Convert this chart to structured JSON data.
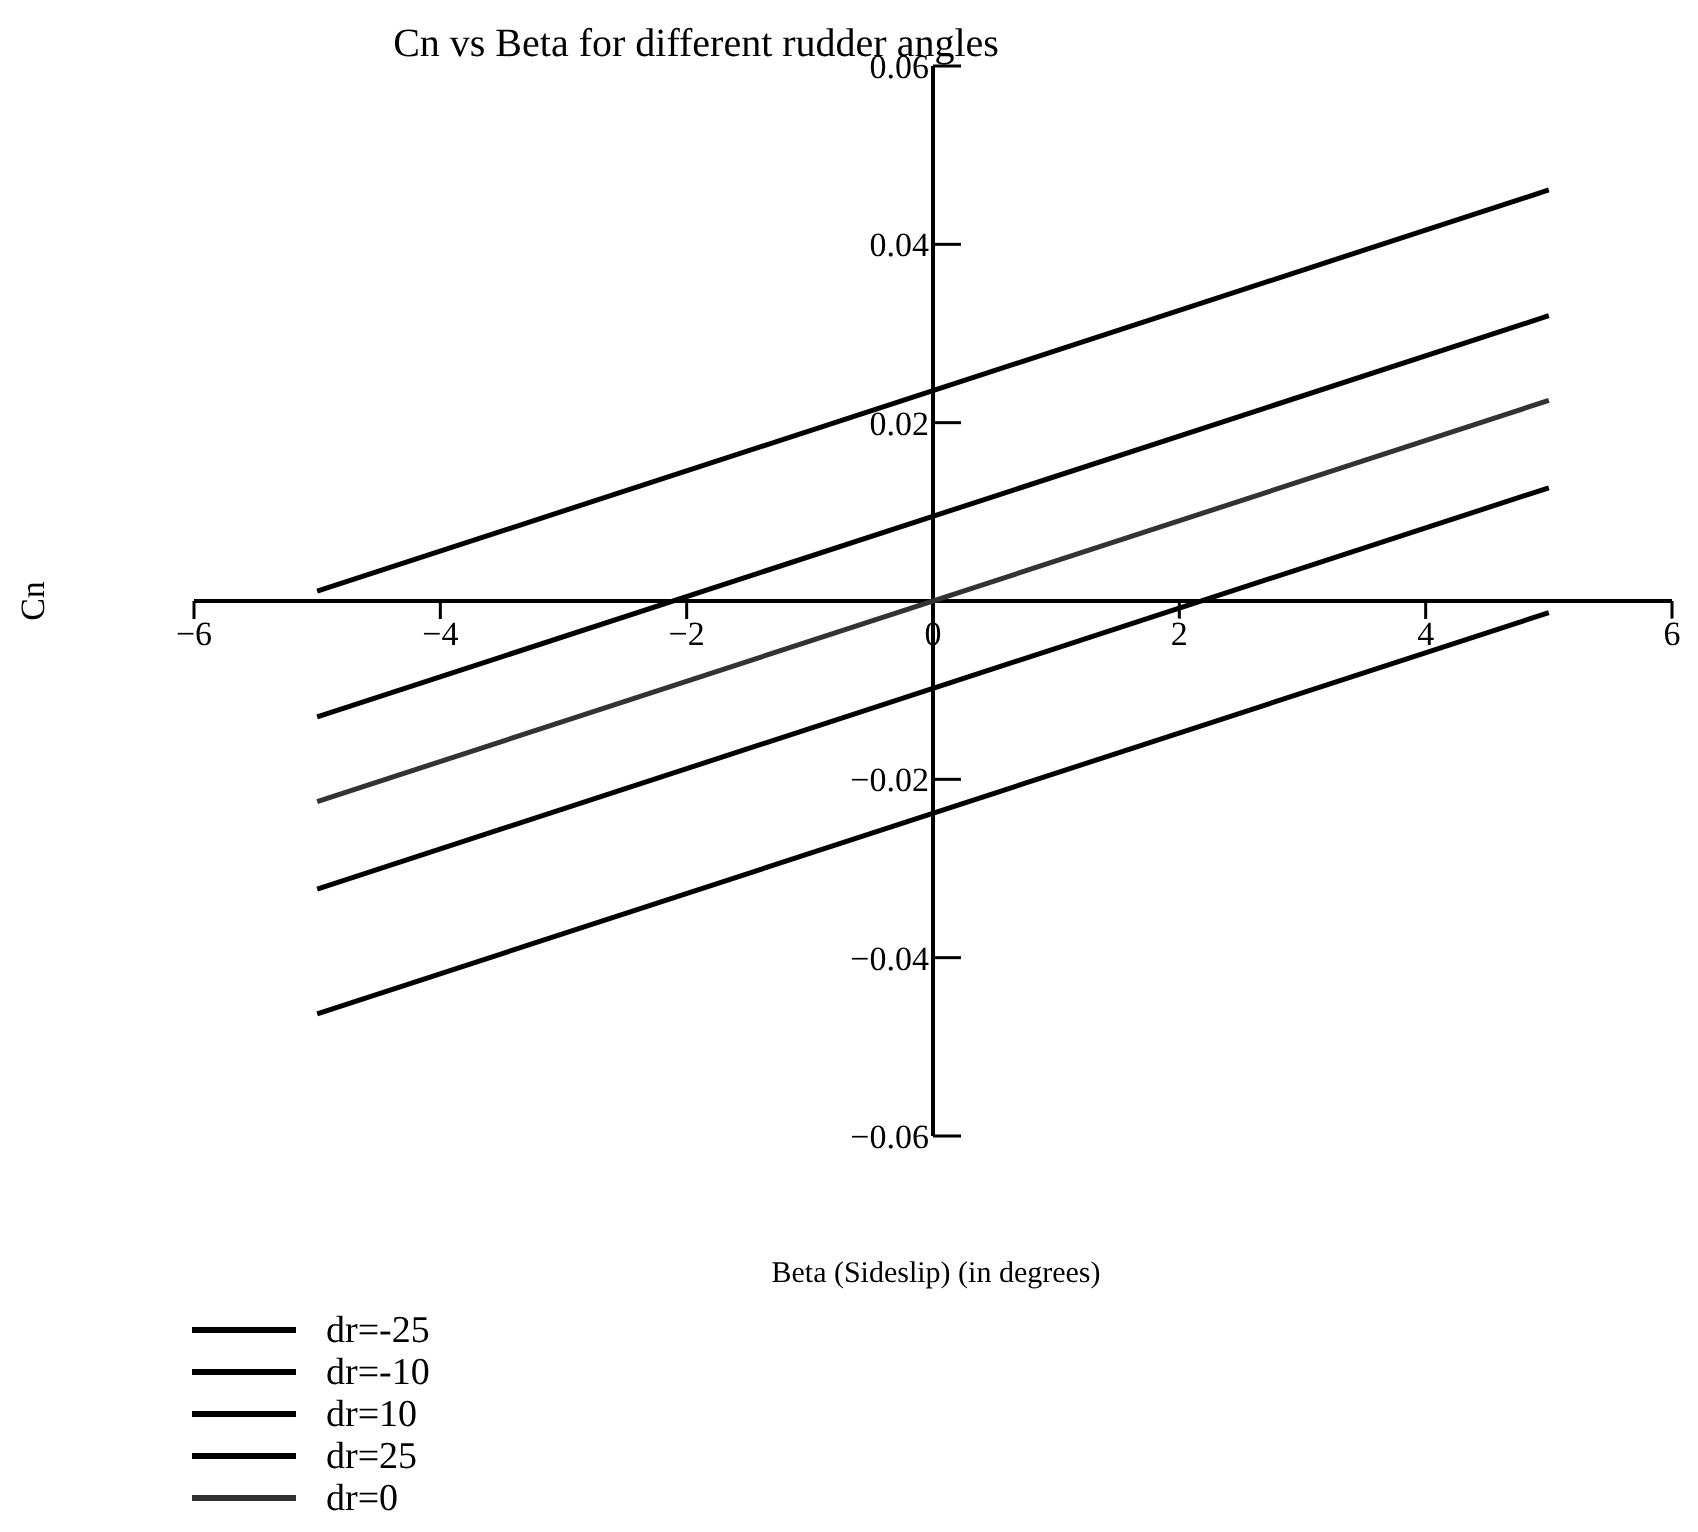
{
  "chart_data": {
    "type": "line",
    "title": "Cn vs Beta for different rudder angles",
    "xlabel": "Beta (Sideslip) (in degrees)",
    "ylabel": "Cn",
    "x": [
      -5,
      5
    ],
    "series": [
      {
        "name": "dr=-25",
        "color": "#000000",
        "values": [
          0.0011,
          0.0461
        ]
      },
      {
        "name": "dr=-10",
        "color": "#000000",
        "values": [
          -0.013,
          0.032
        ]
      },
      {
        "name": "dr=10",
        "color": "#000000",
        "values": [
          -0.0323,
          0.0127
        ]
      },
      {
        "name": "dr=25",
        "color": "#000000",
        "values": [
          -0.0463,
          -0.0013
        ]
      },
      {
        "name": "dr=0",
        "color": "#333333",
        "values": [
          -0.0225,
          0.0225
        ]
      }
    ],
    "xlim": [
      -6,
      6
    ],
    "ylim": [
      -0.06,
      0.06
    ],
    "xticks": [
      {
        "value": -6,
        "label": "−6"
      },
      {
        "value": -4,
        "label": "−4"
      },
      {
        "value": -2,
        "label": "−2"
      },
      0,
      2,
      4,
      6
    ],
    "yticks": [
      {
        "value": -0.06,
        "label": "−0.06"
      },
      {
        "value": -0.04,
        "label": "−0.04"
      },
      {
        "value": -0.02,
        "label": "−0.02"
      },
      0.02,
      0.04,
      0.06
    ],
    "legend": "bottom left",
    "grid": false,
    "marker": "none",
    "line_style": "solid"
  }
}
